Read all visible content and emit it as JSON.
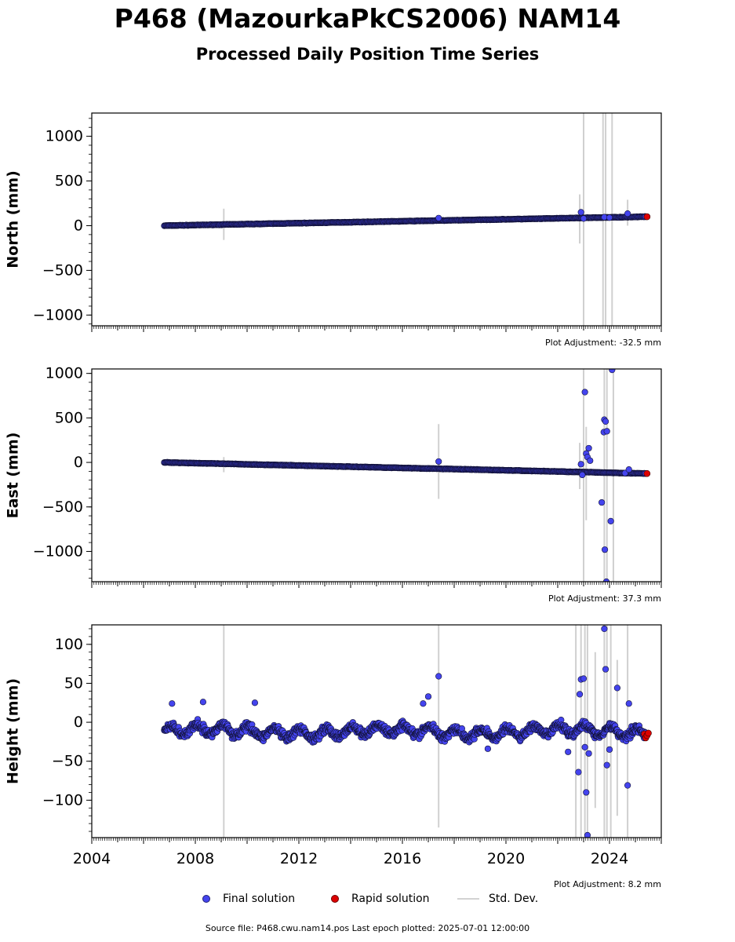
{
  "title": "P468 (MazourkaPkCS2006) NAM14",
  "subtitle": "Processed Daily Position Time Series",
  "legend": {
    "final": "Final solution",
    "rapid": "Rapid solution",
    "std": "Std. Dev."
  },
  "source": "Source file: P468.cwu.nam14.pos  Last epoch plotted: 2025-07-01 12:00:00",
  "colors": {
    "final": "#4444ee",
    "rapid": "#dd0000",
    "std": "#d3d3d3"
  },
  "chart_data": [
    {
      "type": "scatter",
      "ylabel": "North (mm)",
      "adjustment": "Plot Adjustment: -32.5 mm",
      "xlim": [
        2004,
        2026
      ],
      "ylim": [
        -1120,
        1260
      ],
      "yticks": [
        1000,
        500,
        0,
        -500,
        -1000
      ],
      "ytick_labels": [
        "1000",
        "500",
        "0",
        "−500",
        "−1000"
      ],
      "final_trend": {
        "start": [
          2006.8,
          0
        ],
        "end": [
          2025.4,
          100
        ]
      },
      "outliers": [
        [
          2017.4,
          85
        ],
        [
          2022.9,
          150
        ],
        [
          2023.0,
          80
        ],
        [
          2023.8,
          95
        ],
        [
          2024.0,
          90
        ],
        [
          2024.7,
          135
        ]
      ],
      "errorbars": [
        [
          2009.1,
          -160,
          190
        ],
        [
          2022.85,
          -200,
          350
        ],
        [
          2023.0,
          -1120,
          1260
        ],
        [
          2023.75,
          -1120,
          1260
        ],
        [
          2023.85,
          -1120,
          1260
        ],
        [
          2024.1,
          -1120,
          1260
        ],
        [
          2024.7,
          0,
          290
        ]
      ],
      "rapid": [
        [
          2025.45,
          100
        ]
      ]
    },
    {
      "type": "scatter",
      "ylabel": "East (mm)",
      "adjustment": "Plot Adjustment: 37.3 mm",
      "xlim": [
        2004,
        2026
      ],
      "ylim": [
        -1340,
        1050
      ],
      "yticks": [
        1000,
        500,
        0,
        -500,
        -1000
      ],
      "ytick_labels": [
        "1000",
        "500",
        "0",
        "−500",
        "−1000"
      ],
      "final_trend": {
        "start": [
          2006.8,
          0
        ],
        "end": [
          2025.4,
          -125
        ]
      },
      "outliers": [
        [
          2017.4,
          10
        ],
        [
          2022.9,
          -20
        ],
        [
          2022.95,
          -140
        ],
        [
          2023.05,
          790
        ],
        [
          2023.1,
          100
        ],
        [
          2023.15,
          60
        ],
        [
          2023.2,
          160
        ],
        [
          2023.25,
          20
        ],
        [
          2023.7,
          -450
        ],
        [
          2023.78,
          340
        ],
        [
          2023.8,
          480
        ],
        [
          2023.85,
          460
        ],
        [
          2023.9,
          350
        ],
        [
          2023.82,
          -980
        ],
        [
          2023.88,
          -1340
        ],
        [
          2024.05,
          -660
        ],
        [
          2024.1,
          1040
        ],
        [
          2024.6,
          -120
        ],
        [
          2024.75,
          -80
        ]
      ],
      "errorbars": [
        [
          2009.1,
          -110,
          60
        ],
        [
          2017.4,
          -410,
          430
        ],
        [
          2022.85,
          -300,
          220
        ],
        [
          2023.0,
          -1340,
          1050
        ],
        [
          2023.1,
          -650,
          400
        ],
        [
          2023.8,
          -1340,
          1050
        ],
        [
          2023.9,
          -1340,
          1050
        ],
        [
          2024.15,
          -1340,
          1050
        ]
      ],
      "rapid": [
        [
          2025.45,
          -125
        ]
      ]
    },
    {
      "type": "scatter",
      "ylabel": "Height (mm)",
      "adjustment": "Plot Adjustment: 8.2 mm",
      "xlim": [
        2004,
        2026
      ],
      "ylim": [
        -148,
        125
      ],
      "yticks": [
        100,
        50,
        0,
        -50,
        -100
      ],
      "ytick_labels": [
        "100",
        "50",
        "0",
        "−50",
        "−100"
      ],
      "xtick_labels": [
        "2004",
        "2008",
        "2012",
        "2016",
        "2020",
        "2024"
      ],
      "xticks": [
        2004,
        2008,
        2012,
        2016,
        2020,
        2024
      ],
      "final_band": {
        "start": 2006.8,
        "end": 2025.4,
        "center": -12,
        "amplitude": 10,
        "spread": 8
      },
      "outliers": [
        [
          2007.1,
          24
        ],
        [
          2008.3,
          26
        ],
        [
          2010.3,
          25
        ],
        [
          2017.4,
          59
        ],
        [
          2017.0,
          33
        ],
        [
          2022.8,
          -64
        ],
        [
          2022.85,
          36
        ],
        [
          2022.9,
          55
        ],
        [
          2023.0,
          56
        ],
        [
          2023.05,
          -32
        ],
        [
          2023.1,
          -90
        ],
        [
          2023.15,
          -145
        ],
        [
          2023.2,
          -40
        ],
        [
          2023.8,
          120
        ],
        [
          2023.85,
          68
        ],
        [
          2023.9,
          -55
        ],
        [
          2024.0,
          -35
        ],
        [
          2024.3,
          44
        ],
        [
          2024.7,
          -81
        ],
        [
          2024.75,
          24
        ],
        [
          2022.4,
          -38
        ],
        [
          2019.3,
          -34
        ],
        [
          2016.8,
          24
        ]
      ],
      "errorbars": [
        [
          2009.1,
          -148,
          125
        ],
        [
          2017.4,
          -135,
          125
        ],
        [
          2022.7,
          -148,
          125
        ],
        [
          2022.9,
          -148,
          125
        ],
        [
          2023.05,
          -148,
          125
        ],
        [
          2023.15,
          -148,
          125
        ],
        [
          2023.45,
          -110,
          90
        ],
        [
          2023.8,
          -148,
          125
        ],
        [
          2023.9,
          -148,
          125
        ],
        [
          2024.05,
          -148,
          125
        ],
        [
          2024.3,
          -120,
          80
        ],
        [
          2024.7,
          -148,
          125
        ]
      ],
      "rapid": [
        [
          2025.35,
          -15
        ],
        [
          2025.4,
          -20
        ],
        [
          2025.45,
          -17
        ],
        [
          2025.5,
          -14
        ]
      ]
    }
  ]
}
